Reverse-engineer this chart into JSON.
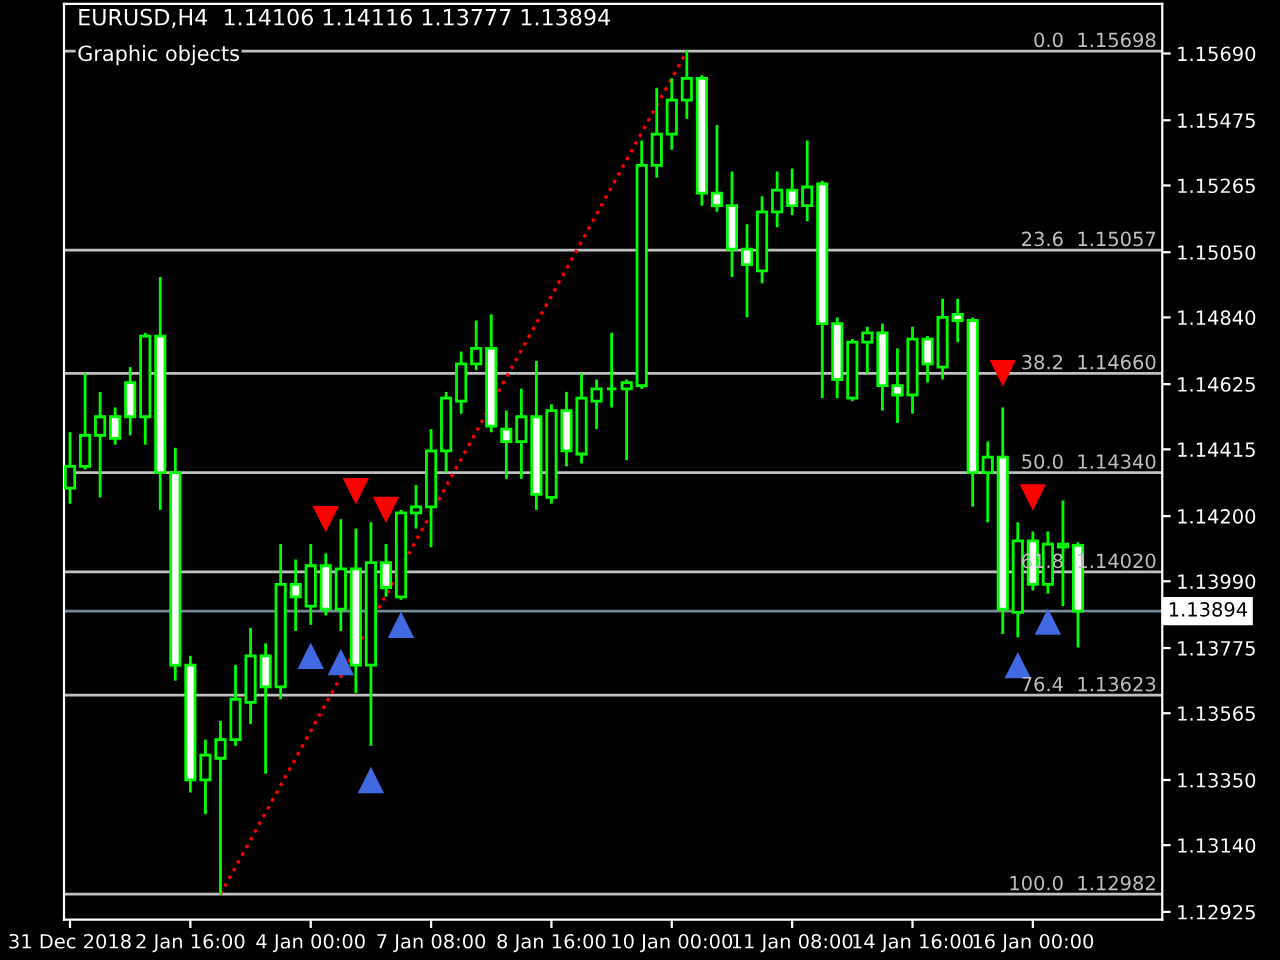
{
  "chart_data": {
    "type": "candlestick",
    "title": "EURUSD,H4  1.14106 1.14116 1.13777 1.13894",
    "annotations": [
      "Graphic objects"
    ],
    "categories": [
      "31 Dec 2018",
      null,
      null,
      null,
      null,
      null,
      null,
      null,
      "2 Jan 16:00",
      null,
      null,
      null,
      null,
      null,
      null,
      null,
      "4 Jan 00:00",
      null,
      null,
      null,
      null,
      null,
      null,
      null,
      "7 Jan 08:00",
      null,
      null,
      null,
      null,
      null,
      null,
      null,
      "8 Jan 16:00",
      null,
      null,
      null,
      null,
      null,
      null,
      null,
      "10 Jan 00:00",
      null,
      null,
      null,
      null,
      null,
      null,
      null,
      "11 Jan 08:00",
      null,
      null,
      null,
      null,
      null,
      null,
      null,
      "14 Jan 16:00",
      null,
      null,
      null,
      null,
      null,
      null,
      null,
      "16 Jan 00:00",
      null,
      null,
      null
    ],
    "color": "#00ff00",
    "ohlc": [
      [
        1.1429,
        1.1447,
        1.1424,
        1.1436
      ],
      [
        1.1436,
        1.1466,
        1.1435,
        1.1446
      ],
      [
        1.1446,
        1.146,
        1.1426,
        1.1452
      ],
      [
        1.1452,
        1.1455,
        1.1443,
        1.1445
      ],
      [
        1.1463,
        1.1468,
        1.1446,
        1.1452
      ],
      [
        1.1452,
        1.1479,
        1.1443,
        1.1478
      ],
      [
        1.1478,
        1.1497,
        1.1422,
        1.1434
      ],
      [
        1.1434,
        1.1442,
        1.1367,
        1.1372
      ],
      [
        1.1372,
        1.1375,
        1.1331,
        1.1335
      ],
      [
        1.1335,
        1.1348,
        1.1324,
        1.1343
      ],
      [
        1.1342,
        1.1354,
        1.1298,
        1.1348
      ],
      [
        1.1348,
        1.1372,
        1.1346,
        1.1361
      ],
      [
        1.136,
        1.1384,
        1.1353,
        1.1375
      ],
      [
        1.1375,
        1.1379,
        1.1337,
        1.1365
      ],
      [
        1.1365,
        1.1411,
        1.1361,
        1.1398
      ],
      [
        1.1398,
        1.1406,
        1.1383,
        1.1394
      ],
      [
        1.1391,
        1.1411,
        1.1385,
        1.1404
      ],
      [
        1.1404,
        1.1408,
        1.1388,
        1.139
      ],
      [
        1.139,
        1.1419,
        1.1383,
        1.1403
      ],
      [
        1.1403,
        1.1416,
        1.1363,
        1.1372
      ],
      [
        1.1372,
        1.1418,
        1.1346,
        1.1405
      ],
      [
        1.1405,
        1.1411,
        1.1394,
        1.1397
      ],
      [
        1.1394,
        1.1422,
        1.1393,
        1.1421
      ],
      [
        1.1421,
        1.143,
        1.1416,
        1.1423
      ],
      [
        1.1423,
        1.1448,
        1.141,
        1.1441
      ],
      [
        1.1441,
        1.146,
        1.1434,
        1.1458
      ],
      [
        1.1457,
        1.1473,
        1.1453,
        1.1469
      ],
      [
        1.1469,
        1.1483,
        1.1467,
        1.1474
      ],
      [
        1.1474,
        1.1485,
        1.1447,
        1.1449
      ],
      [
        1.1448,
        1.1454,
        1.1432,
        1.1444
      ],
      [
        1.1444,
        1.1461,
        1.1432,
        1.1452
      ],
      [
        1.1452,
        1.147,
        1.1422,
        1.1427
      ],
      [
        1.1426,
        1.1456,
        1.1424,
        1.1454
      ],
      [
        1.1454,
        1.146,
        1.1436,
        1.1441
      ],
      [
        1.144,
        1.1466,
        1.1437,
        1.1458
      ],
      [
        1.1457,
        1.1464,
        1.1448,
        1.1461
      ],
      [
        1.1461,
        1.1479,
        1.1455,
        1.1461
      ],
      [
        1.1461,
        1.1464,
        1.1438,
        1.1463
      ],
      [
        1.1462,
        1.1541,
        1.1461,
        1.1533
      ],
      [
        1.1533,
        1.1558,
        1.1529,
        1.1543
      ],
      [
        1.1543,
        1.1561,
        1.1538,
        1.1554
      ],
      [
        1.1554,
        1.157,
        1.1548,
        1.1561
      ],
      [
        1.1561,
        1.1562,
        1.152,
        1.1524
      ],
      [
        1.1524,
        1.1546,
        1.1518,
        1.152
      ],
      [
        1.152,
        1.1531,
        1.1497,
        1.1506
      ],
      [
        1.1506,
        1.1514,
        1.1484,
        1.1501
      ],
      [
        1.1499,
        1.1523,
        1.1495,
        1.1518
      ],
      [
        1.1518,
        1.1531,
        1.1513,
        1.1525
      ],
      [
        1.1525,
        1.1532,
        1.1517,
        1.152
      ],
      [
        1.152,
        1.1541,
        1.1515,
        1.1526
      ],
      [
        1.1527,
        1.1528,
        1.1458,
        1.1482
      ],
      [
        1.1482,
        1.1484,
        1.1458,
        1.1464
      ],
      [
        1.1458,
        1.1477,
        1.1457,
        1.1476
      ],
      [
        1.1476,
        1.1481,
        1.1466,
        1.1479
      ],
      [
        1.1479,
        1.1482,
        1.1454,
        1.1462
      ],
      [
        1.1462,
        1.1474,
        1.145,
        1.1459
      ],
      [
        1.1459,
        1.1481,
        1.1453,
        1.1477
      ],
      [
        1.1477,
        1.1478,
        1.1463,
        1.1469
      ],
      [
        1.1468,
        1.149,
        1.1464,
        1.1484
      ],
      [
        1.1485,
        1.149,
        1.1476,
        1.1483
      ],
      [
        1.1483,
        1.1484,
        1.1423,
        1.1434
      ],
      [
        1.1434,
        1.1444,
        1.1418,
        1.1439
      ],
      [
        1.1439,
        1.1455,
        1.1382,
        1.139
      ],
      [
        1.1389,
        1.1418,
        1.1381,
        1.1412
      ],
      [
        1.1412,
        1.1415,
        1.1396,
        1.1398
      ],
      [
        1.1398,
        1.1415,
        1.1395,
        1.1411
      ],
      [
        1.141,
        1.1425,
        1.1391,
        1.1411
      ],
      [
        1.14106,
        1.14116,
        1.13777,
        1.13894
      ]
    ],
    "series": [
      {
        "type": "line",
        "color": "#ff0000",
        "line_style": "dotted",
        "marker": "none",
        "values": [
          null,
          null,
          null,
          null,
          null,
          null,
          null,
          null,
          null,
          null,
          1.12982,
          null,
          null,
          null,
          null,
          null,
          null,
          null,
          null,
          null,
          null,
          null,
          null,
          null,
          null,
          null,
          null,
          null,
          null,
          null,
          null,
          null,
          null,
          null,
          null,
          null,
          null,
          null,
          null,
          null,
          null,
          1.15698,
          null,
          null,
          null,
          null,
          null,
          null,
          null,
          null,
          null,
          null,
          null,
          null,
          null,
          null,
          null,
          null,
          null,
          null,
          null,
          null,
          null,
          null,
          null,
          null,
          null,
          null
        ]
      },
      {
        "type": "scatter",
        "color": "#ff0000",
        "marker": "triangle",
        "values": [
          null,
          null,
          null,
          null,
          null,
          null,
          null,
          null,
          null,
          null,
          null,
          null,
          null,
          null,
          null,
          null,
          null,
          1.1419,
          null,
          1.1428,
          null,
          1.1422,
          null,
          null,
          null,
          null,
          null,
          null,
          null,
          null,
          null,
          null,
          null,
          null,
          null,
          null,
          null,
          null,
          null,
          null,
          null,
          null,
          null,
          null,
          null,
          null,
          null,
          null,
          null,
          null,
          null,
          null,
          null,
          null,
          null,
          null,
          null,
          null,
          null,
          null,
          null,
          null,
          1.1466,
          null,
          1.1426,
          null,
          null,
          null
        ]
      },
      {
        "type": "scatter",
        "color": "#4169e1",
        "marker": "triangle",
        "values": [
          null,
          null,
          null,
          null,
          null,
          null,
          null,
          null,
          null,
          null,
          null,
          null,
          null,
          null,
          null,
          null,
          1.1375,
          null,
          1.1373,
          null,
          1.1335,
          null,
          1.1385,
          null,
          null,
          null,
          null,
          null,
          null,
          null,
          null,
          null,
          null,
          null,
          null,
          null,
          null,
          null,
          null,
          null,
          null,
          null,
          null,
          null,
          null,
          null,
          null,
          null,
          null,
          null,
          null,
          null,
          null,
          null,
          null,
          null,
          null,
          null,
          null,
          null,
          null,
          null,
          null,
          1.1372,
          null,
          1.1386,
          null,
          null
        ]
      }
    ],
    "ref_lines": [
      {
        "axis": "y",
        "value": 1.15698,
        "label": "0.0  1.15698",
        "color": "#c0c0c0"
      },
      {
        "axis": "y",
        "value": 1.15057,
        "label": "23.6  1.15057",
        "color": "#c0c0c0"
      },
      {
        "axis": "y",
        "value": 1.1466,
        "label": "38.2  1.14660",
        "color": "#c0c0c0"
      },
      {
        "axis": "y",
        "value": 1.1434,
        "label": "50.0  1.14340",
        "color": "#c0c0c0"
      },
      {
        "axis": "y",
        "value": 1.1402,
        "label": "61.8  1.14020",
        "color": "#c0c0c0"
      },
      {
        "axis": "y",
        "value": 1.13623,
        "label": "76.4  1.13623",
        "color": "#c0c0c0"
      },
      {
        "axis": "y",
        "value": 1.12982,
        "label": "100.0  1.12982",
        "color": "#c0c0c0"
      },
      {
        "axis": "y",
        "value": 1.13894,
        "label": "1.13894",
        "color": "#778899",
        "line_style": "solid"
      }
    ],
    "ylim": [
      1.129,
      1.1585
    ],
    "yticks": [
      {
        "value": 1.12925,
        "label": "1.12925"
      },
      {
        "value": 1.1314,
        "label": "1.13140"
      },
      {
        "value": 1.1335,
        "label": "1.13350"
      },
      {
        "value": 1.13565,
        "label": "1.13565"
      },
      {
        "value": 1.13775,
        "label": "1.13775"
      },
      {
        "value": 1.1399,
        "label": "1.13990"
      },
      {
        "value": 1.142,
        "label": "1.14200"
      },
      {
        "value": 1.14415,
        "label": "1.14415"
      },
      {
        "value": 1.14625,
        "label": "1.14625"
      },
      {
        "value": 1.1484,
        "label": "1.14840"
      },
      {
        "value": 1.1505,
        "label": "1.15050"
      },
      {
        "value": 1.15265,
        "label": "1.15265"
      },
      {
        "value": 1.15475,
        "label": "1.15475"
      },
      {
        "value": 1.1569,
        "label": "1.15690"
      }
    ],
    "grid": false,
    "legend": false
  }
}
